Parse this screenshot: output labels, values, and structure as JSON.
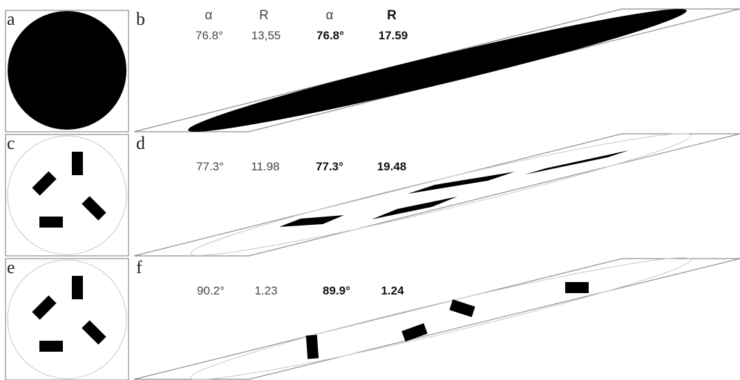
{
  "panels": {
    "a": {
      "letter": "a"
    },
    "b": {
      "letter": "b"
    },
    "c": {
      "letter": "c"
    },
    "d": {
      "letter": "d"
    },
    "e": {
      "letter": "e"
    },
    "f": {
      "letter": "f"
    }
  },
  "headers": {
    "alpha_measured": "α",
    "r_measured": "R",
    "alpha_theory": "α",
    "r_theory": "R"
  },
  "rows": [
    {
      "alpha_measured": "76.8°",
      "r_measured": "13,55",
      "alpha_theory": "76.8°",
      "r_theory": "17.59"
    },
    {
      "alpha_measured": "77.3°",
      "r_measured": "11.98",
      "alpha_theory": "77.3°",
      "r_theory": "19.48"
    },
    {
      "alpha_measured": "90.2°",
      "r_measured": "1.23",
      "alpha_theory": "89.9°",
      "r_theory": "1.24"
    }
  ],
  "colors": {
    "shape": "#000000",
    "frame": "#8a8a8a",
    "outline": "#cfcfcf"
  }
}
